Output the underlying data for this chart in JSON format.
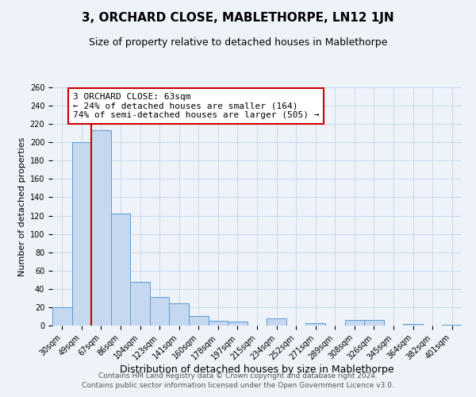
{
  "title": "3, ORCHARD CLOSE, MABLETHORPE, LN12 1JN",
  "subtitle": "Size of property relative to detached houses in Mablethorpe",
  "xlabel": "Distribution of detached houses by size in Mablethorpe",
  "ylabel": "Number of detached properties",
  "bin_labels": [
    "30sqm",
    "49sqm",
    "67sqm",
    "86sqm",
    "104sqm",
    "123sqm",
    "141sqm",
    "160sqm",
    "178sqm",
    "197sqm",
    "215sqm",
    "234sqm",
    "252sqm",
    "271sqm",
    "289sqm",
    "308sqm",
    "326sqm",
    "345sqm",
    "364sqm",
    "382sqm",
    "401sqm"
  ],
  "bar_heights": [
    20,
    200,
    213,
    122,
    48,
    31,
    24,
    10,
    5,
    4,
    0,
    8,
    0,
    3,
    0,
    6,
    6,
    0,
    2,
    0,
    1
  ],
  "bar_color": "#c5d8f0",
  "bar_edge_color": "#5b9bd5",
  "grid_color": "#c8d8ee",
  "background_color": "#eef3fa",
  "vline_x_index": 1.5,
  "vline_color": "#cc0000",
  "annotation_line1": "3 ORCHARD CLOSE: 63sqm",
  "annotation_line2": "← 24% of detached houses are smaller (164)",
  "annotation_line3": "74% of semi-detached houses are larger (505) →",
  "annotation_box_color": "#ffffff",
  "annotation_box_edge": "#cc0000",
  "ylim": [
    0,
    260
  ],
  "yticks": [
    0,
    20,
    40,
    60,
    80,
    100,
    120,
    140,
    160,
    180,
    200,
    220,
    240,
    260
  ],
  "footer_line1": "Contains HM Land Registry data © Crown copyright and database right 2024.",
  "footer_line2": "Contains public sector information licensed under the Open Government Licence v3.0.",
  "title_fontsize": 11,
  "subtitle_fontsize": 9,
  "xlabel_fontsize": 9,
  "ylabel_fontsize": 8,
  "tick_fontsize": 7,
  "annotation_fontsize": 8,
  "footer_fontsize": 6.5
}
